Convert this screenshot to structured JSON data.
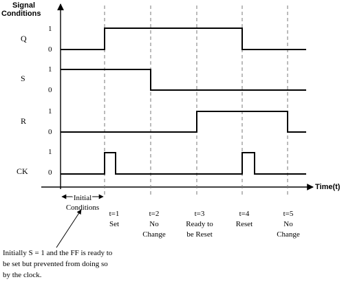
{
  "axis": {
    "y_title_line1": "Signal",
    "y_title_line2": "Conditions",
    "x_title": "Time(t)"
  },
  "signals": [
    {
      "name": "Q",
      "high_label": "1",
      "low_label": "0",
      "transitions": [
        0,
        1,
        0,
        0,
        1,
        0
      ],
      "levels": [
        0,
        1,
        1,
        1,
        0,
        0
      ]
    },
    {
      "name": "S",
      "high_label": "1",
      "low_label": "0",
      "levels": [
        1,
        1,
        0,
        0,
        0,
        0
      ]
    },
    {
      "name": "R",
      "high_label": "1",
      "low_label": "0",
      "levels": [
        0,
        0,
        0,
        1,
        1,
        0
      ]
    },
    {
      "name": "CK",
      "high_label": "1",
      "low_label": "0",
      "pulses_at": [
        1,
        4
      ]
    }
  ],
  "initial_conditions": {
    "line1": "Initial",
    "line2": "Conditions"
  },
  "events": [
    {
      "t": "t=1",
      "line1": "Set",
      "line2": ""
    },
    {
      "t": "t=2",
      "line1": "No",
      "line2": "Change"
    },
    {
      "t": "t=3",
      "line1": "Ready to",
      "line2": "be Reset"
    },
    {
      "t": "t=4",
      "line1": "Reset",
      "line2": ""
    },
    {
      "t": "t=5",
      "line1": "No",
      "line2": "Change"
    }
  ],
  "note": {
    "line1": "Initially S = 1 and the FF is ready to",
    "line2": "be set but prevented from doing so",
    "line3": "by the clock."
  }
}
